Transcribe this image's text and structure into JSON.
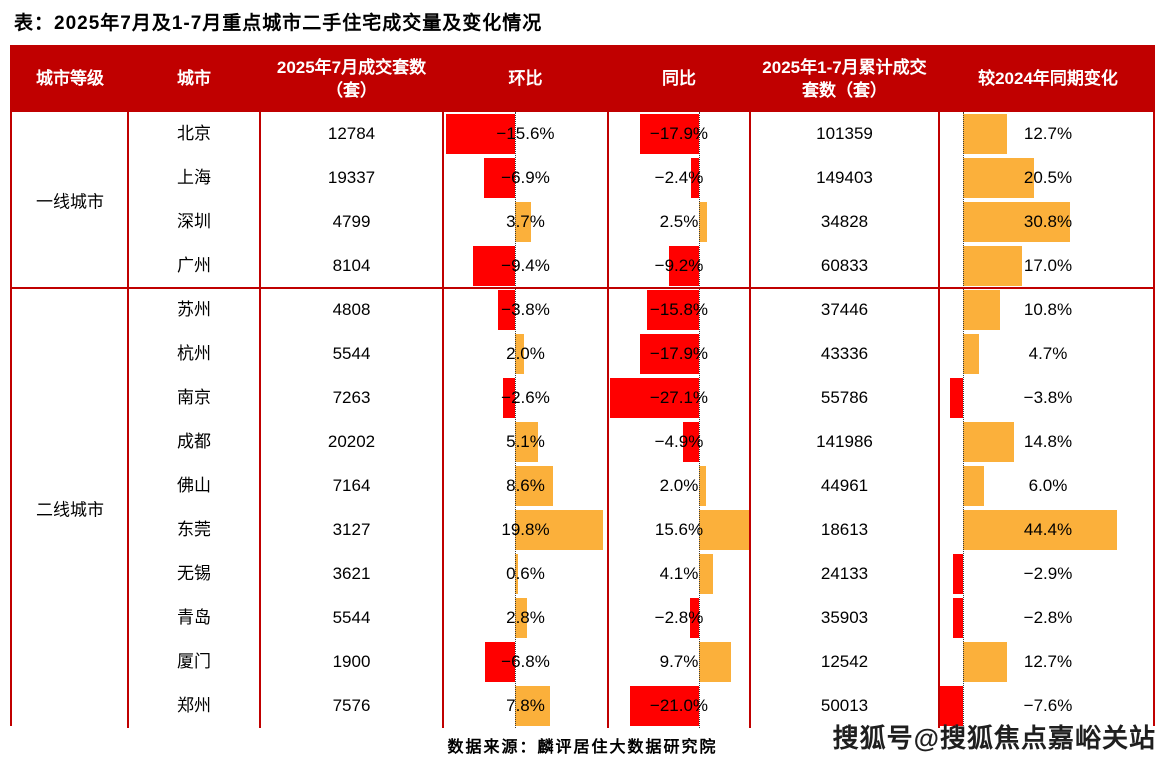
{
  "title": "表：2025年7月及1-7月重点城市二手住宅成交量及变化情况",
  "colors": {
    "header_bg": "#C00000",
    "border": "#C00000",
    "negative_bar": "#FF0000",
    "positive_bar": "#FBB03B",
    "header_text": "#FFFFFF"
  },
  "table": {
    "columns": [
      "城市等级",
      "城市",
      "2025年7月成交套数（套）",
      "环比",
      "同比",
      "2025年1-7月累计成交套数（套）",
      "较2024年同期变化"
    ],
    "tiers": [
      {
        "label": "一线城市",
        "rows": [
          {
            "city": "北京",
            "jul": "12784",
            "mom": -15.6,
            "mom_label": "−15.6%",
            "yoy": -17.9,
            "yoy_label": "−17.9%",
            "cum": "101359",
            "vs": 12.7,
            "vs_label": "12.7%"
          },
          {
            "city": "上海",
            "jul": "19337",
            "mom": -6.9,
            "mom_label": "−6.9%",
            "yoy": -2.4,
            "yoy_label": "−2.4%",
            "cum": "149403",
            "vs": 20.5,
            "vs_label": "20.5%"
          },
          {
            "city": "深圳",
            "jul": "4799",
            "mom": 3.7,
            "mom_label": "3.7%",
            "yoy": 2.5,
            "yoy_label": "2.5%",
            "cum": "34828",
            "vs": 30.8,
            "vs_label": "30.8%"
          },
          {
            "city": "广州",
            "jul": "8104",
            "mom": -9.4,
            "mom_label": "−9.4%",
            "yoy": -9.2,
            "yoy_label": "−9.2%",
            "cum": "60833",
            "vs": 17.0,
            "vs_label": "17.0%"
          }
        ]
      },
      {
        "label": "二线城市",
        "rows": [
          {
            "city": "苏州",
            "jul": "4808",
            "mom": -3.8,
            "mom_label": "−3.8%",
            "yoy": -15.8,
            "yoy_label": "−15.8%",
            "cum": "37446",
            "vs": 10.8,
            "vs_label": "10.8%"
          },
          {
            "city": "杭州",
            "jul": "5544",
            "mom": 2.0,
            "mom_label": "2.0%",
            "yoy": -17.9,
            "yoy_label": "−17.9%",
            "cum": "43336",
            "vs": 4.7,
            "vs_label": "4.7%"
          },
          {
            "city": "南京",
            "jul": "7263",
            "mom": -2.6,
            "mom_label": "−2.6%",
            "yoy": -27.1,
            "yoy_label": "−27.1%",
            "cum": "55786",
            "vs": -3.8,
            "vs_label": "−3.8%"
          },
          {
            "city": "成都",
            "jul": "20202",
            "mom": 5.1,
            "mom_label": "5.1%",
            "yoy": -4.9,
            "yoy_label": "−4.9%",
            "cum": "141986",
            "vs": 14.8,
            "vs_label": "14.8%"
          },
          {
            "city": "佛山",
            "jul": "7164",
            "mom": 8.6,
            "mom_label": "8.6%",
            "yoy": 2.0,
            "yoy_label": "2.0%",
            "cum": "44961",
            "vs": 6.0,
            "vs_label": "6.0%"
          },
          {
            "city": "东莞",
            "jul": "3127",
            "mom": 19.8,
            "mom_label": "19.8%",
            "yoy": 15.6,
            "yoy_label": "15.6%",
            "cum": "18613",
            "vs": 44.4,
            "vs_label": "44.4%"
          },
          {
            "city": "无锡",
            "jul": "3621",
            "mom": 0.6,
            "mom_label": "0.6%",
            "yoy": 4.1,
            "yoy_label": "4.1%",
            "cum": "24133",
            "vs": -2.9,
            "vs_label": "−2.9%"
          },
          {
            "city": "青岛",
            "jul": "5544",
            "mom": 2.8,
            "mom_label": "2.8%",
            "yoy": -2.8,
            "yoy_label": "−2.8%",
            "cum": "35903",
            "vs": -2.8,
            "vs_label": "−2.8%"
          },
          {
            "city": "厦门",
            "jul": "1900",
            "mom": -6.8,
            "mom_label": "−6.8%",
            "yoy": 9.7,
            "yoy_label": "9.7%",
            "cum": "12542",
            "vs": 12.7,
            "vs_label": "12.7%"
          },
          {
            "city": "郑州",
            "jul": "7576",
            "mom": 7.8,
            "mom_label": "7.8%",
            "yoy": -21.0,
            "yoy_label": "−21.0%",
            "cum": "50013",
            "vs": -7.6,
            "vs_label": "−7.6%"
          }
        ]
      }
    ]
  },
  "footer": {
    "source": "数据来源：麟评居住大数据研究院",
    "watermark": "搜狐号@搜狐焦点嘉峪关站"
  },
  "chart_data": {
    "type": "table",
    "title": "表：2025年7月及1-7月重点城市二手住宅成交量及变化情况",
    "columns": [
      "城市等级",
      "城市",
      "2025年7月成交套数（套）",
      "环比(%)",
      "同比(%)",
      "2025年1-7月累计成交套数（套）",
      "较2024年同期变化(%)"
    ],
    "rows": [
      [
        "一线城市",
        "北京",
        12784,
        -15.6,
        -17.9,
        101359,
        12.7
      ],
      [
        "一线城市",
        "上海",
        19337,
        -6.9,
        -2.4,
        149403,
        20.5
      ],
      [
        "一线城市",
        "深圳",
        4799,
        3.7,
        2.5,
        34828,
        30.8
      ],
      [
        "一线城市",
        "广州",
        8104,
        -9.4,
        -9.2,
        60833,
        17.0
      ],
      [
        "二线城市",
        "苏州",
        4808,
        -3.8,
        -15.8,
        37446,
        10.8
      ],
      [
        "二线城市",
        "杭州",
        5544,
        2.0,
        -17.9,
        43336,
        4.7
      ],
      [
        "二线城市",
        "南京",
        7263,
        -2.6,
        -27.1,
        55786,
        -3.8
      ],
      [
        "二线城市",
        "成都",
        20202,
        5.1,
        -4.9,
        141986,
        14.8
      ],
      [
        "二线城市",
        "佛山",
        7164,
        8.6,
        2.0,
        44961,
        6.0
      ],
      [
        "二线城市",
        "东莞",
        3127,
        19.8,
        15.6,
        18613,
        44.4
      ],
      [
        "二线城市",
        "无锡",
        3621,
        0.6,
        4.1,
        24133,
        -2.9
      ],
      [
        "二线城市",
        "青岛",
        5544,
        2.8,
        -2.8,
        35903,
        -2.8
      ],
      [
        "二线城市",
        "厦门",
        1900,
        -6.8,
        9.7,
        12542,
        12.7
      ],
      [
        "二线城市",
        "郑州",
        7576,
        7.8,
        -21.0,
        50013,
        -7.6
      ]
    ],
    "bar_columns": [
      "环比(%)",
      "同比(%)",
      "较2024年同期变化(%)"
    ],
    "bar_colors": {
      "positive": "#FBB03B",
      "negative": "#FF0000"
    },
    "source": "数据来源：麟评居住大数据研究院"
  }
}
